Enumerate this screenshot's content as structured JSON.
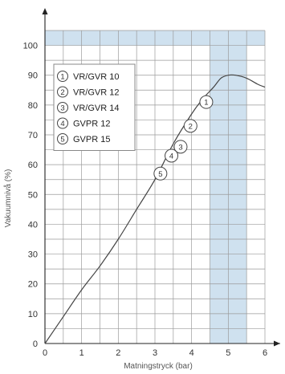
{
  "chart_data": {
    "type": "line",
    "xlabel": "Matningstryck (bar)",
    "ylabel": "Vakuumnivå (%)",
    "xlim": [
      0,
      6
    ],
    "ylim": [
      0,
      105
    ],
    "x_ticks": [
      "0",
      "1",
      "2",
      "3",
      "4",
      "5",
      "6"
    ],
    "y_ticks": [
      "0",
      "10",
      "20",
      "30",
      "40",
      "50",
      "60",
      "70",
      "80",
      "90",
      "100"
    ],
    "grid": true,
    "shaded_regions": [
      {
        "x": [
          0,
          6
        ],
        "y": [
          100,
          105
        ]
      },
      {
        "x": [
          4.5,
          5.5
        ],
        "y": [
          0,
          105
        ]
      }
    ],
    "shade_color": "#cfe1ef",
    "line_color": "#444444",
    "series": [
      {
        "x": [
          0,
          0.5,
          1,
          1.5,
          2,
          2.5,
          3,
          3.5,
          4,
          4.3,
          4.6,
          4.8,
          5.0,
          5.2,
          5.5,
          5.8,
          6.0
        ],
        "y": [
          0,
          9,
          18,
          26,
          35,
          45,
          55,
          67,
          77,
          82,
          86,
          89,
          90,
          90,
          89,
          87,
          86
        ]
      }
    ],
    "legend": {
      "placement": "top-left",
      "items": [
        {
          "num": "1",
          "label": "VR/GVR 10"
        },
        {
          "num": "2",
          "label": "VR/GVR 12"
        },
        {
          "num": "3",
          "label": "VR/GVR 14"
        },
        {
          "num": "4",
          "label": "GVPR 12"
        },
        {
          "num": "5",
          "label": "GVPR 15"
        }
      ]
    },
    "markers": [
      {
        "num": "1",
        "x": 4.4,
        "y": 81
      },
      {
        "num": "2",
        "x": 3.97,
        "y": 73
      },
      {
        "num": "3",
        "x": 3.7,
        "y": 66
      },
      {
        "num": "4",
        "x": 3.45,
        "y": 63
      },
      {
        "num": "5",
        "x": 3.15,
        "y": 57
      }
    ]
  }
}
